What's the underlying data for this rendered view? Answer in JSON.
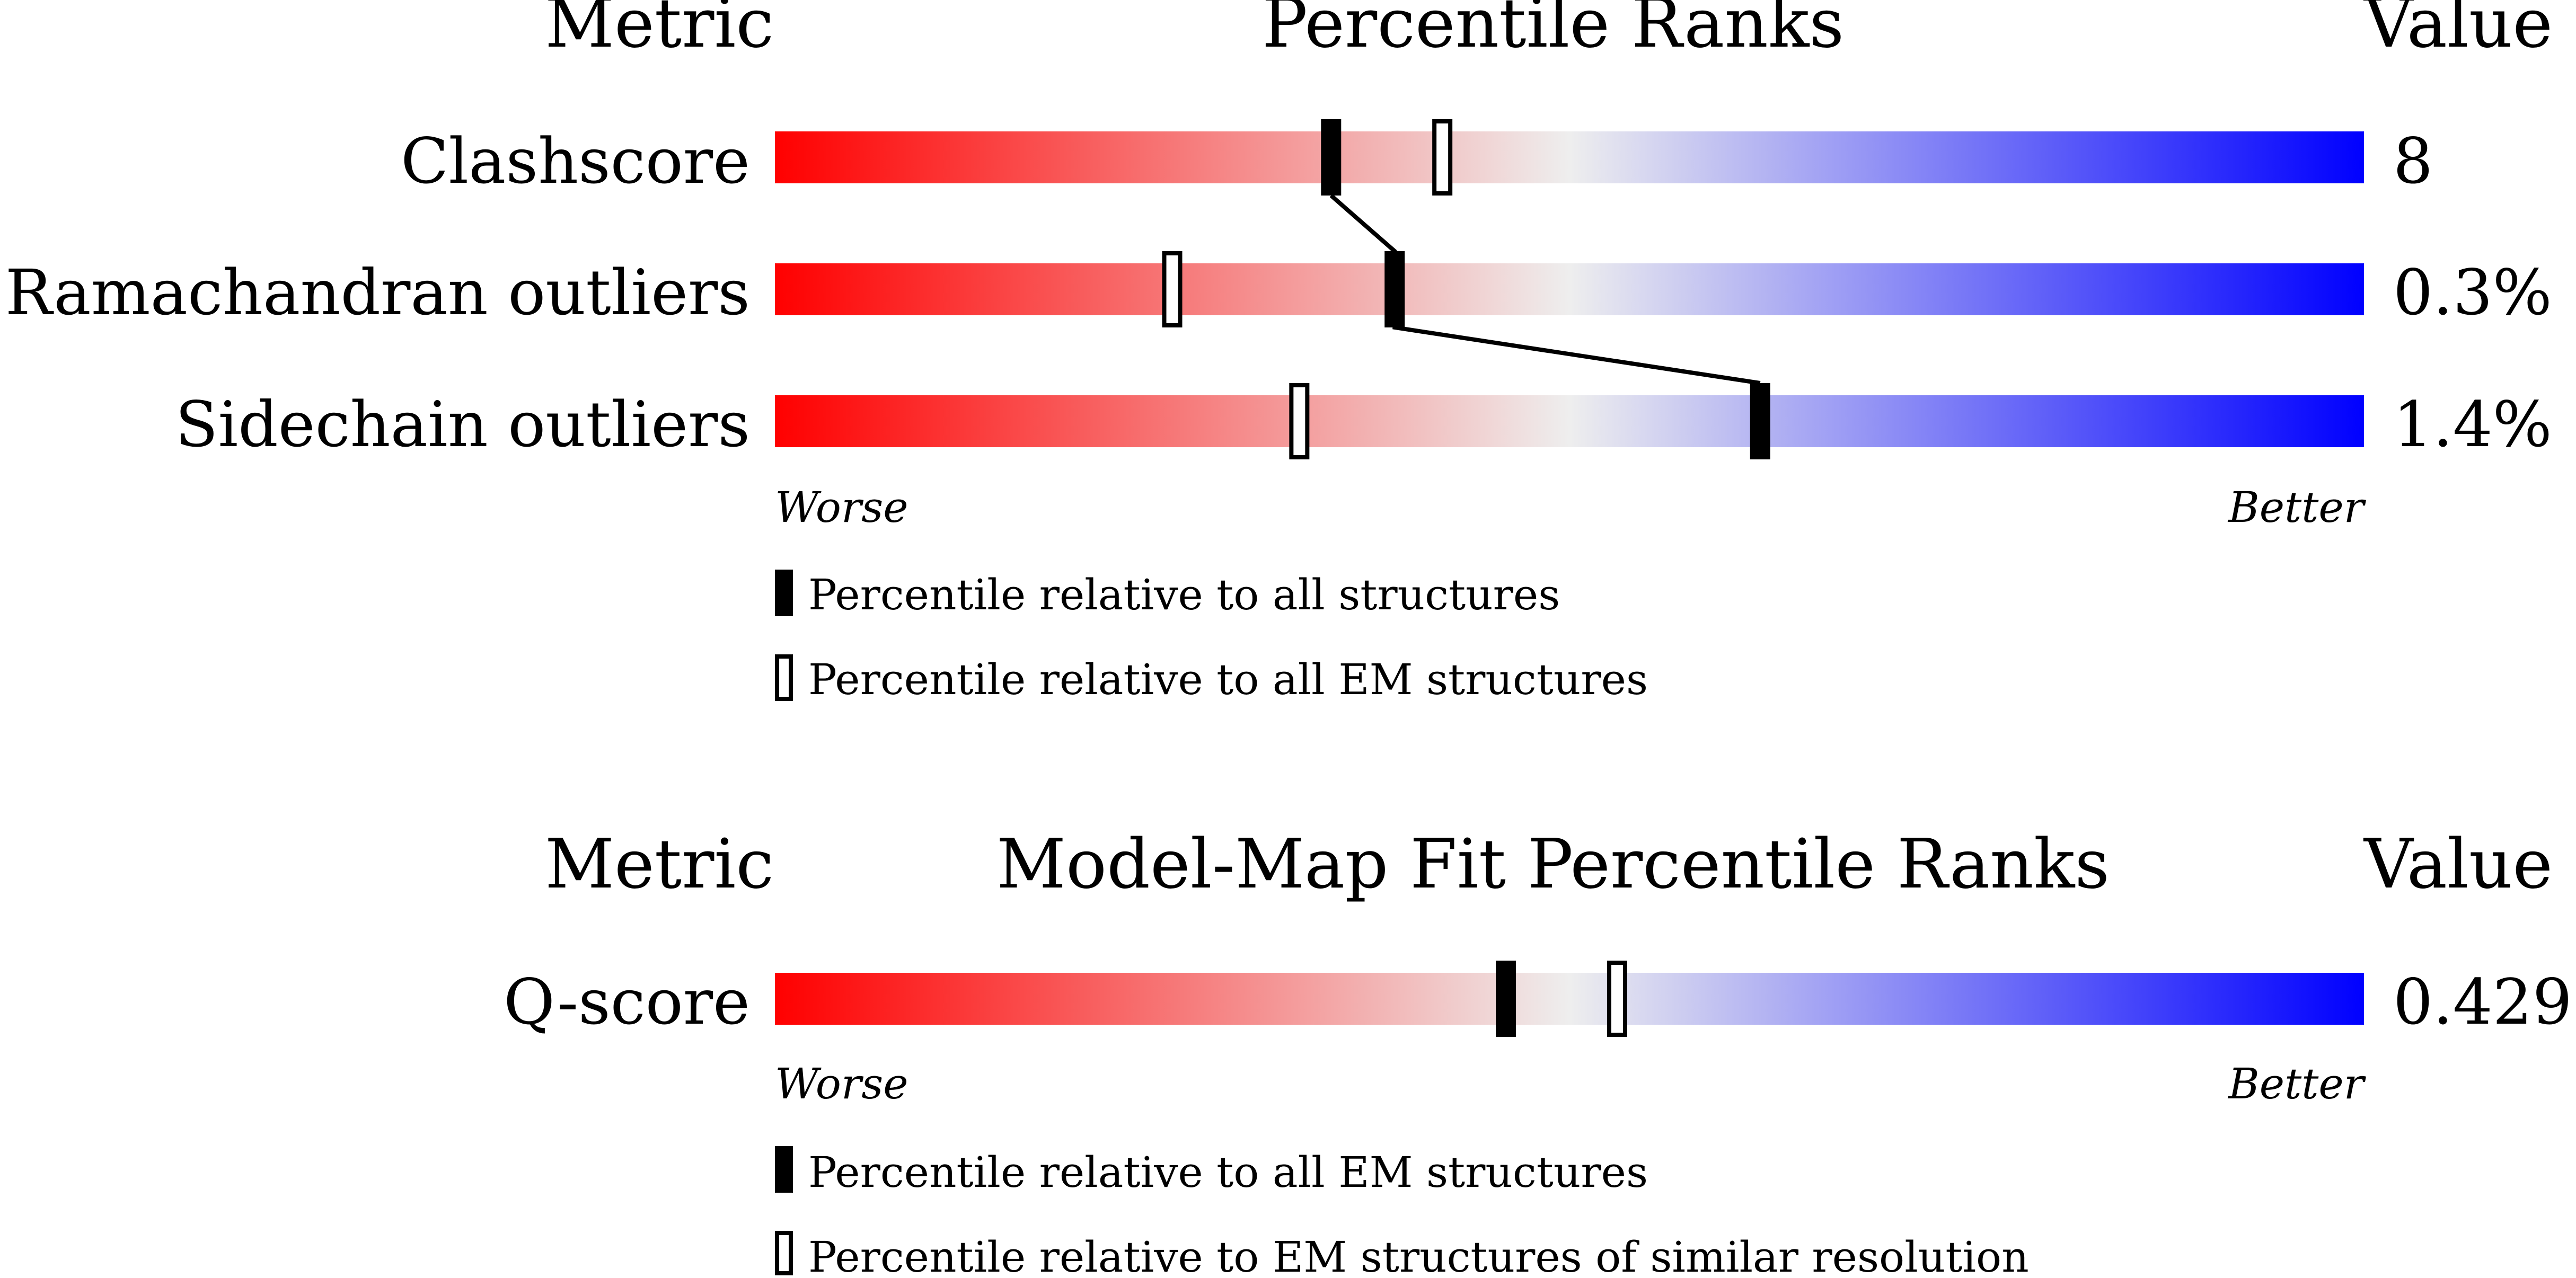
{
  "chart_data": [
    {
      "type": "bar",
      "title": "Percentile Ranks",
      "metric_header": "Metric",
      "value_header": "Value",
      "x_range": [
        0,
        100
      ],
      "low_end_label": "Worse",
      "high_end_label": "Better",
      "gradient_colors": {
        "worse": "#ff0000",
        "middle": "#eeeeee",
        "better": "#0000ff"
      },
      "rows": [
        {
          "metric": "Clashscore",
          "value": "8",
          "percentile_all": 35,
          "percentile_em": 42
        },
        {
          "metric": "Ramachandran outliers",
          "value": "0.3%",
          "percentile_all": 39,
          "percentile_em": 25
        },
        {
          "metric": "Sidechain outliers",
          "value": "1.4%",
          "percentile_all": 62,
          "percentile_em": 33
        }
      ],
      "connect_filled_markers": true,
      "legend": [
        {
          "marker": "filled",
          "label": "Percentile relative to all structures"
        },
        {
          "marker": "open",
          "label": "Percentile relative to all EM structures"
        }
      ]
    },
    {
      "type": "bar",
      "title": "Model-Map Fit Percentile Ranks",
      "metric_header": "Metric",
      "value_header": "Value",
      "x_range": [
        0,
        100
      ],
      "low_end_label": "Worse",
      "high_end_label": "Better",
      "gradient_colors": {
        "worse": "#ff0000",
        "middle": "#eeeeee",
        "better": "#0000ff"
      },
      "rows": [
        {
          "metric": "Q-score",
          "value": "0.429",
          "percentile_all": 46,
          "percentile_em": 53
        }
      ],
      "connect_filled_markers": false,
      "legend": [
        {
          "marker": "filled",
          "label": "Percentile relative to all EM structures"
        },
        {
          "marker": "open",
          "label": "Percentile relative to EM structures of similar resolution"
        }
      ]
    }
  ]
}
